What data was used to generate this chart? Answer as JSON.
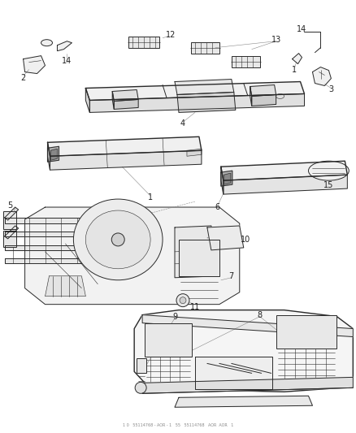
{
  "bg": "#ffffff",
  "lc": "#2a2a2a",
  "lc_light": "#666666",
  "fig_w": 4.38,
  "fig_h": 5.33,
  "dpi": 100,
  "footer": "1 0   55114768 - AOR - 1   55   55114768   AOR  AOR   1"
}
